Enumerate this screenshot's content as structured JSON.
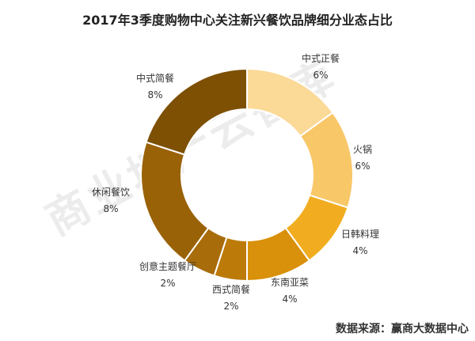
{
  "chart_data": {
    "type": "pie",
    "title": "2017年3季度购物中心关注新兴餐饮品牌细分业态占比",
    "categories": [
      "中式正餐",
      "火锅",
      "日韩料理",
      "东南亚菜",
      "西式简餐",
      "创意主题餐厅",
      "休闲餐饮",
      "中式简餐"
    ],
    "values": [
      6,
      6,
      4,
      4,
      2,
      2,
      8,
      8
    ],
    "value_labels": [
      "6%",
      "6%",
      "4%",
      "4%",
      "2%",
      "2%",
      "8%",
      "8%"
    ],
    "colors": [
      "#fbd997",
      "#f8c768",
      "#f1ad1f",
      "#d9900a",
      "#bc7a09",
      "#a86c0a",
      "#9a6207",
      "#7d5004"
    ],
    "donut": true,
    "legend": "none"
  },
  "watermark": "商业地产云智库",
  "source_note": "数据来源：赢商大数据中心"
}
